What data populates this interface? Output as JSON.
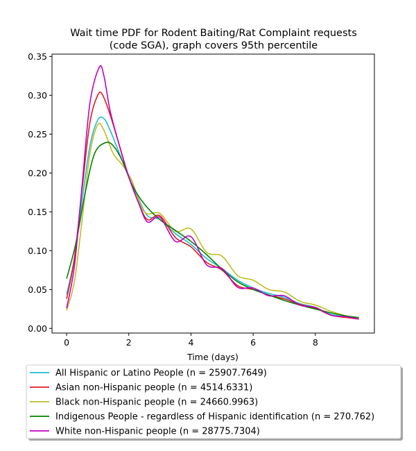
{
  "chart_data": {
    "type": "line",
    "title": "Wait time PDF for Rodent Baiting/Rat Complaint  requests\n(code SGA), graph covers 95th percentile",
    "xlabel": "Time (days)",
    "ylabel": "",
    "xlim": [
      -0.47,
      9.9
    ],
    "ylim": [
      -0.006,
      0.353
    ],
    "xticks": [
      0,
      2,
      4,
      6,
      8
    ],
    "yticks": [
      0.0,
      0.05,
      0.1,
      0.15,
      0.2,
      0.25,
      0.3,
      0.35
    ],
    "grid": false,
    "legend_position": "bottom-outside",
    "series": [
      {
        "name": "All Hispanic or Latino People (n = 25907.7649)",
        "color": "#17becf",
        "points": [
          [
            0,
            0.044
          ],
          [
            0.25,
            0.09
          ],
          [
            0.5,
            0.165
          ],
          [
            0.75,
            0.235
          ],
          [
            1.0,
            0.268
          ],
          [
            1.2,
            0.27
          ],
          [
            1.4,
            0.255
          ],
          [
            1.7,
            0.225
          ],
          [
            2.0,
            0.195
          ],
          [
            2.3,
            0.168
          ],
          [
            2.6,
            0.145
          ],
          [
            3.0,
            0.14
          ],
          [
            3.5,
            0.122
          ],
          [
            4.0,
            0.108
          ],
          [
            4.5,
            0.09
          ],
          [
            5.0,
            0.077
          ],
          [
            5.5,
            0.062
          ],
          [
            6.0,
            0.052
          ],
          [
            6.5,
            0.045
          ],
          [
            7.0,
            0.04
          ],
          [
            7.5,
            0.032
          ],
          [
            8.0,
            0.027
          ],
          [
            8.5,
            0.018
          ],
          [
            9.0,
            0.015
          ],
          [
            9.4,
            0.013
          ]
        ]
      },
      {
        "name": "Asian non-Hispanic people (n = 4514.6331)",
        "color": "#e31a1c",
        "points": [
          [
            0,
            0.038
          ],
          [
            0.25,
            0.09
          ],
          [
            0.5,
            0.18
          ],
          [
            0.75,
            0.265
          ],
          [
            1.0,
            0.3
          ],
          [
            1.15,
            0.301
          ],
          [
            1.4,
            0.275
          ],
          [
            1.7,
            0.235
          ],
          [
            2.0,
            0.195
          ],
          [
            2.3,
            0.163
          ],
          [
            2.6,
            0.14
          ],
          [
            3.0,
            0.145
          ],
          [
            3.5,
            0.117
          ],
          [
            4.0,
            0.105
          ],
          [
            4.5,
            0.085
          ],
          [
            5.0,
            0.075
          ],
          [
            5.5,
            0.055
          ],
          [
            6.0,
            0.05
          ],
          [
            6.5,
            0.043
          ],
          [
            7.0,
            0.038
          ],
          [
            7.5,
            0.031
          ],
          [
            8.0,
            0.026
          ],
          [
            8.5,
            0.017
          ],
          [
            9.0,
            0.014
          ],
          [
            9.4,
            0.012
          ]
        ]
      },
      {
        "name": "Black non-Hispanic people (n = 24660.9963)",
        "color": "#bcbd22",
        "points": [
          [
            0,
            0.023
          ],
          [
            0.25,
            0.06
          ],
          [
            0.5,
            0.14
          ],
          [
            0.75,
            0.225
          ],
          [
            1.0,
            0.262
          ],
          [
            1.2,
            0.255
          ],
          [
            1.5,
            0.225
          ],
          [
            1.8,
            0.21
          ],
          [
            2.1,
            0.19
          ],
          [
            2.5,
            0.15
          ],
          [
            3.0,
            0.148
          ],
          [
            3.5,
            0.125
          ],
          [
            4.0,
            0.128
          ],
          [
            4.5,
            0.098
          ],
          [
            5.0,
            0.093
          ],
          [
            5.5,
            0.068
          ],
          [
            6.0,
            0.062
          ],
          [
            6.5,
            0.05
          ],
          [
            7.0,
            0.047
          ],
          [
            7.5,
            0.035
          ],
          [
            8.0,
            0.03
          ],
          [
            8.5,
            0.022
          ],
          [
            9.0,
            0.016
          ],
          [
            9.4,
            0.013
          ]
        ]
      },
      {
        "name": "Indigenous People - regardless of Hispanic identification (n = 270.762)",
        "color": "#008000",
        "points": [
          [
            0,
            0.064
          ],
          [
            0.3,
            0.11
          ],
          [
            0.6,
            0.175
          ],
          [
            0.9,
            0.225
          ],
          [
            1.25,
            0.239
          ],
          [
            1.5,
            0.235
          ],
          [
            1.8,
            0.215
          ],
          [
            2.1,
            0.185
          ],
          [
            2.5,
            0.16
          ],
          [
            3.0,
            0.14
          ],
          [
            3.5,
            0.126
          ],
          [
            4.0,
            0.112
          ],
          [
            4.5,
            0.095
          ],
          [
            5.0,
            0.076
          ],
          [
            5.5,
            0.06
          ],
          [
            6.0,
            0.05
          ],
          [
            6.5,
            0.043
          ],
          [
            7.0,
            0.036
          ],
          [
            7.5,
            0.03
          ],
          [
            8.0,
            0.025
          ],
          [
            8.5,
            0.02
          ],
          [
            9.0,
            0.016
          ],
          [
            9.4,
            0.014
          ]
        ]
      },
      {
        "name": "White non-Hispanic people (n = 28775.7304)",
        "color": "#bf00bf",
        "points": [
          [
            0,
            0.026
          ],
          [
            0.25,
            0.08
          ],
          [
            0.5,
            0.185
          ],
          [
            0.75,
            0.29
          ],
          [
            1.05,
            0.336
          ],
          [
            1.2,
            0.325
          ],
          [
            1.4,
            0.28
          ],
          [
            1.7,
            0.235
          ],
          [
            2.0,
            0.195
          ],
          [
            2.3,
            0.163
          ],
          [
            2.6,
            0.137
          ],
          [
            3.0,
            0.143
          ],
          [
            3.5,
            0.112
          ],
          [
            4.0,
            0.118
          ],
          [
            4.5,
            0.082
          ],
          [
            5.0,
            0.077
          ],
          [
            5.5,
            0.053
          ],
          [
            6.0,
            0.052
          ],
          [
            6.5,
            0.042
          ],
          [
            7.0,
            0.042
          ],
          [
            7.5,
            0.03
          ],
          [
            8.0,
            0.027
          ],
          [
            8.5,
            0.017
          ],
          [
            9.0,
            0.015
          ],
          [
            9.4,
            0.012
          ]
        ]
      }
    ]
  }
}
